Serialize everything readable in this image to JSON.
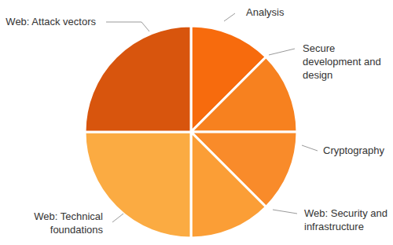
{
  "chart_data": {
    "type": "pie",
    "categories": [
      "Analysis",
      "Secure development and design",
      "Cryptography",
      "Web: Security and infrastructure",
      "Web: Technical foundations",
      "Web: Attack vectors"
    ],
    "values": [
      12.5,
      12.5,
      12.5,
      12.5,
      25,
      25
    ],
    "colors": [
      "#f76b0d",
      "#f7811f",
      "#f98b2a",
      "#fb9e36",
      "#fbab42",
      "#d8550d"
    ]
  }
}
